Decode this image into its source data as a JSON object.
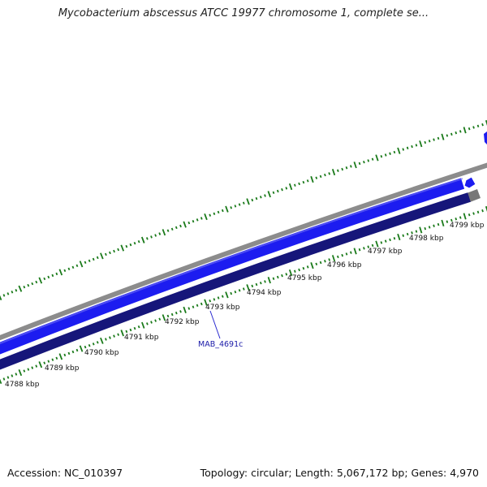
{
  "header": {
    "title": "Mycobacterium abscessus ATCC 19977 chromosome 1, complete se..."
  },
  "footer": {
    "accession": "Accession: NC_010397",
    "summary": "Topology: circular; Length: 5,067,172 bp; Genes: 4,970"
  },
  "map": {
    "tick_labels": [
      "4788 kbp",
      "4789 kbp",
      "4790 kbp",
      "4791 kbp",
      "4792 kbp",
      "4793 kbp",
      "4794 kbp",
      "4795 kbp",
      "4796 kbp",
      "4797 kbp",
      "4798 kbp",
      "4799 kbp"
    ],
    "gene_label": "MAB_4691c",
    "colors": {
      "backbone": "#8c8c8c",
      "forward_strand": "#1c1cf0",
      "reverse_strand": "#16167a",
      "ticks": "#1a7a1a",
      "label_line": "#2a2ad0"
    }
  }
}
